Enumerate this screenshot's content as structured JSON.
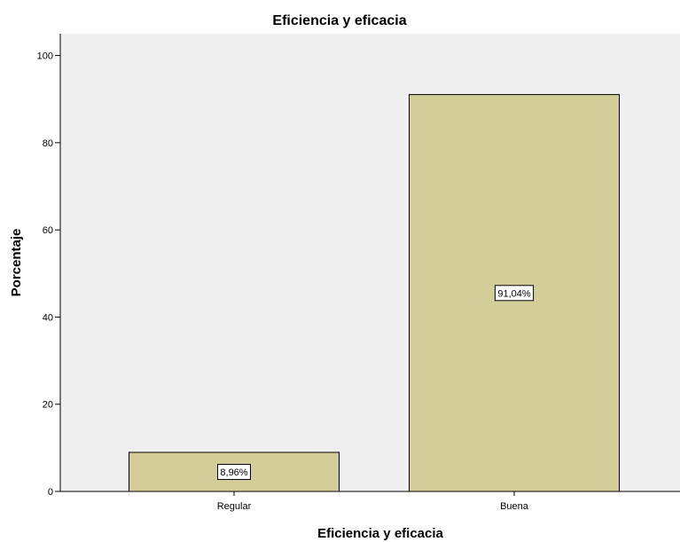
{
  "chart_data": {
    "type": "bar",
    "title": "Eficiencia y eficacia",
    "xlabel": "Eficiencia y eficacia",
    "ylabel": "Porcentaje",
    "categories": [
      "Regular",
      "Buena"
    ],
    "values": [
      8.96,
      91.04
    ],
    "data_labels": [
      "8,96%",
      "91,04%"
    ],
    "ylim": [
      0,
      105
    ],
    "yticks": [
      0,
      20,
      40,
      60,
      80,
      100
    ],
    "ytick_labels": [
      "0",
      "20",
      "40",
      "60",
      "80",
      "100"
    ],
    "grid": false,
    "legend": "none",
    "colors": {
      "bar_fill": "#D3CE98",
      "bar_stroke": "#000000",
      "plot_background": "#F0F0F0",
      "label_box_fill": "#FFFFFF"
    }
  }
}
